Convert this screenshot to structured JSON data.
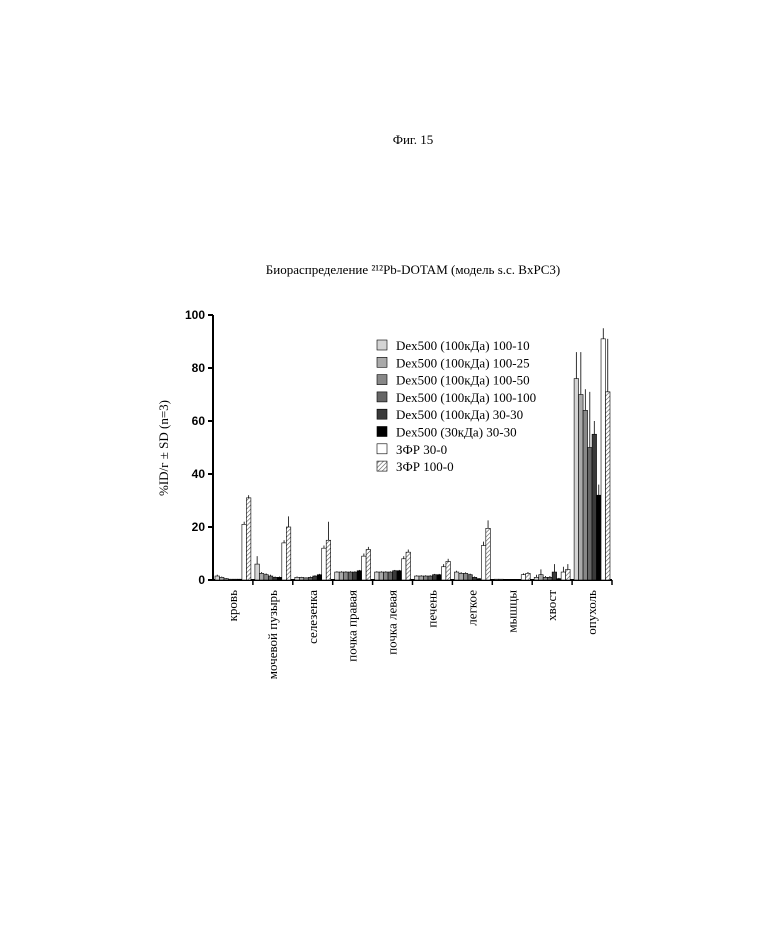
{
  "figure_label": "Фиг. 15",
  "chart_data": {
    "type": "bar",
    "title": "Биораспределение ²¹²Pb-DOTAM (модель s.c. BxPC3)",
    "y_label": "%ID/г ± SD (n=3)",
    "categories": [
      "кровь",
      "мочевой пузырь",
      "селезенка",
      "почка правая",
      "почка левая",
      "печень",
      "легкое",
      "мышцы",
      "хвост",
      "опухоль"
    ],
    "ylim": [
      0,
      100
    ],
    "yticks": [
      0,
      20,
      40,
      60,
      80,
      100
    ],
    "series": [
      {
        "name": "Dex500 (100кДа) 100-10",
        "color": "#d4d4d4",
        "values": [
          1.5,
          6,
          1,
          3,
          3,
          1.5,
          3,
          0.3,
          1,
          76
        ],
        "errors": [
          0.5,
          3,
          0.3,
          0.3,
          0.3,
          0.3,
          0.5,
          0.1,
          1,
          10
        ]
      },
      {
        "name": "Dex500 (100кДа) 100-25",
        "color": "#aaaaaa",
        "values": [
          1,
          2.5,
          1,
          3,
          3,
          1.5,
          2.5,
          0.3,
          2,
          70
        ],
        "errors": [
          0.3,
          0.5,
          0.2,
          0.3,
          0.3,
          0.3,
          0.5,
          0.1,
          2,
          16
        ]
      },
      {
        "name": "Dex500 (100кДа) 100-50",
        "color": "#888888",
        "values": [
          0.5,
          2,
          0.8,
          3,
          3,
          1.5,
          2.5,
          0.2,
          1,
          64
        ],
        "errors": [
          0.2,
          0.5,
          0.2,
          0.3,
          0.3,
          0.3,
          0.4,
          0.1,
          0.5,
          8
        ]
      },
      {
        "name": "Dex500 (100кДа) 100-100",
        "color": "#666666",
        "values": [
          0.3,
          1.5,
          1,
          3,
          3,
          1.5,
          2,
          0.2,
          1,
          50
        ],
        "errors": [
          0.1,
          0.5,
          0.3,
          0.3,
          0.3,
          0.3,
          0.4,
          0.1,
          0.5,
          21
        ]
      },
      {
        "name": "Dex500 (100кДа) 30-30",
        "color": "#3a3a3a",
        "values": [
          0.3,
          1,
          1.5,
          3,
          3.5,
          2,
          1,
          0.2,
          3,
          55
        ],
        "errors": [
          0.1,
          0.3,
          0.3,
          0.3,
          0.3,
          0.3,
          0.3,
          0.1,
          3,
          5
        ]
      },
      {
        "name": "Dex500 (30кДа) 30-30",
        "color": "#000000",
        "values": [
          0.3,
          1,
          2,
          3.5,
          3.5,
          2,
          0.5,
          0.2,
          0.5,
          32
        ],
        "errors": [
          0.1,
          0.3,
          0.3,
          0.3,
          0.3,
          0.3,
          0.2,
          0.1,
          0.3,
          4
        ]
      },
      {
        "name": "ЗФР 30-0",
        "color": "#ffffff",
        "values": [
          21,
          14,
          12,
          9,
          8,
          5,
          13,
          2,
          3,
          91
        ],
        "errors": [
          1,
          1,
          1,
          1,
          1,
          1,
          1.5,
          0.5,
          2,
          4
        ]
      },
      {
        "name": "ЗФР 100-0",
        "color": "#ffffff",
        "hatch": true,
        "values": [
          31,
          20,
          15,
          11.5,
          10.5,
          7,
          19.5,
          2.5,
          4,
          71
        ],
        "errors": [
          1,
          4,
          7,
          1,
          1,
          1,
          3,
          0.5,
          2,
          20
        ]
      }
    ]
  }
}
